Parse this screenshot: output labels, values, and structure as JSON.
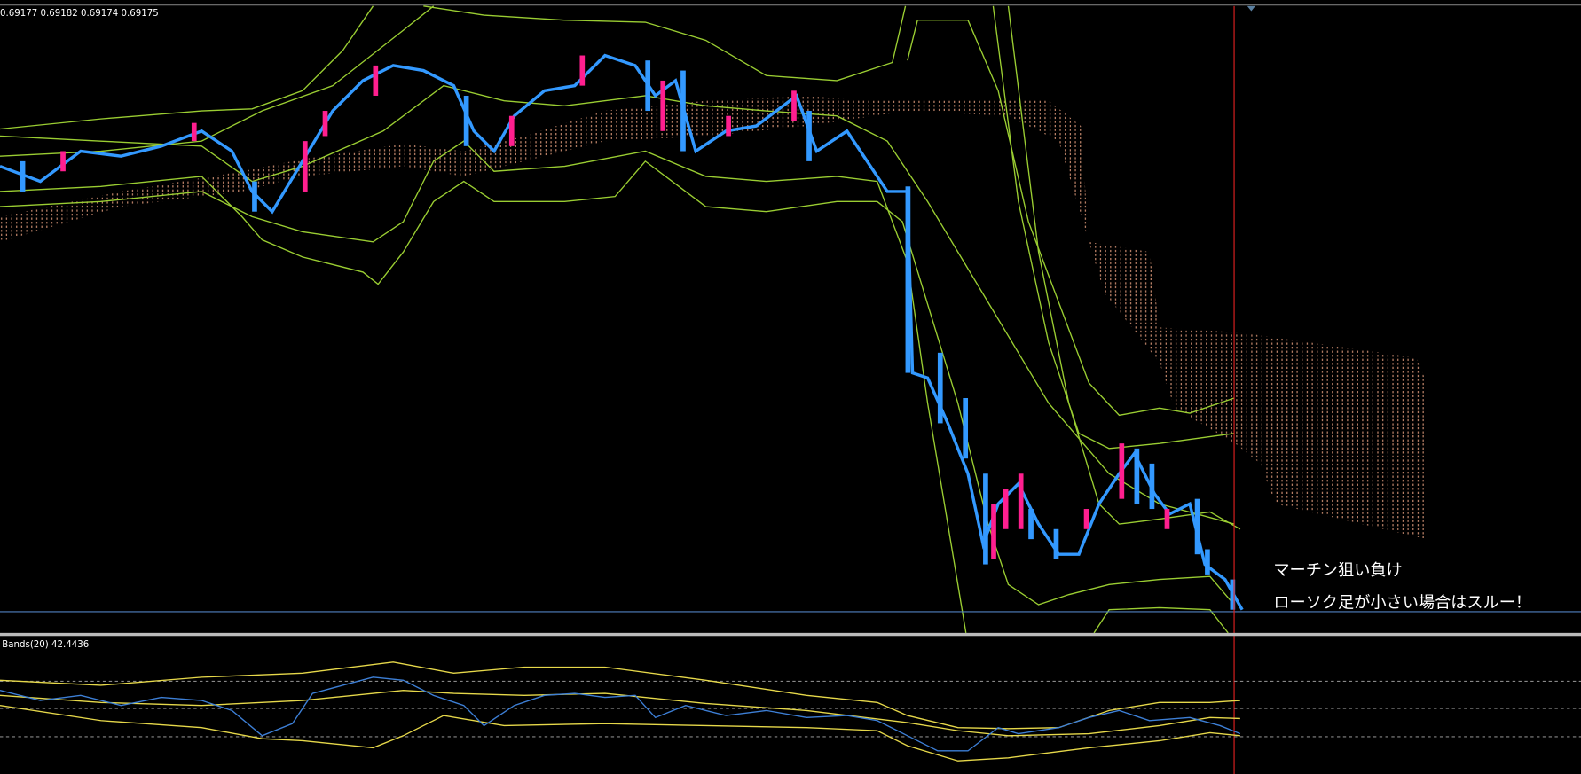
{
  "header": {
    "ohlc": "0.69177 0.69182 0.69174 0.69175"
  },
  "sub_window": {
    "label": "Bands(20) 42.4436"
  },
  "annotations": [
    "マーチン狙い負け",
    "ローソク足が小さい場合はスルー！"
  ]
}
